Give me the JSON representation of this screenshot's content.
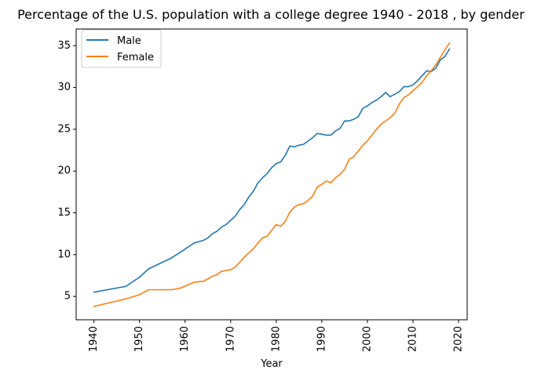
{
  "chart_data": {
    "type": "line",
    "title": "Percentage of the U.S. population with a college degree 1940 - 2018 , by gender",
    "xlabel": "Year",
    "ylabel": "",
    "xlim": [
      1936.1,
      2021.9
    ],
    "ylim": [
      2.2,
      37.0
    ],
    "xticks": [
      1940,
      1950,
      1960,
      1970,
      1980,
      1990,
      2000,
      2010,
      2020
    ],
    "yticks": [
      5,
      10,
      15,
      20,
      25,
      30,
      35
    ],
    "grid": false,
    "legend_position": "upper-left",
    "series": [
      {
        "name": "Male",
        "color": "#1f77b4",
        "x": [
          1940,
          1947,
          1950,
          1952,
          1957,
          1959,
          1962,
          1964,
          1965,
          1966,
          1967,
          1968,
          1969,
          1970,
          1971,
          1972,
          1973,
          1974,
          1975,
          1976,
          1977,
          1978,
          1979,
          1980,
          1981,
          1982,
          1983,
          1984,
          1985,
          1986,
          1987,
          1988,
          1989,
          1990,
          1991,
          1992,
          1993,
          1994,
          1995,
          1996,
          1997,
          1998,
          1999,
          2000,
          2001,
          2002,
          2003,
          2004,
          2005,
          2006,
          2007,
          2008,
          2009,
          2010,
          2011,
          2012,
          2013,
          2014,
          2015,
          2016,
          2017,
          2018
        ],
        "y": [
          5.5,
          6.2,
          7.3,
          8.3,
          9.6,
          10.3,
          11.4,
          11.7,
          12.0,
          12.5,
          12.8,
          13.3,
          13.6,
          14.1,
          14.6,
          15.4,
          16.0,
          16.9,
          17.6,
          18.6,
          19.2,
          19.7,
          20.4,
          20.9,
          21.1,
          21.9,
          23.0,
          22.9,
          23.1,
          23.2,
          23.6,
          24.0,
          24.5,
          24.4,
          24.3,
          24.3,
          24.8,
          25.1,
          26.0,
          26.0,
          26.2,
          26.5,
          27.5,
          27.8,
          28.2,
          28.5,
          28.9,
          29.4,
          28.9,
          29.2,
          29.5,
          30.1,
          30.1,
          30.3,
          30.8,
          31.4,
          32.0,
          31.9,
          32.3,
          33.3,
          33.7,
          34.6
        ]
      },
      {
        "name": "Female",
        "color": "#ff7f0e",
        "x": [
          1940,
          1947,
          1950,
          1952,
          1957,
          1959,
          1962,
          1964,
          1965,
          1966,
          1967,
          1968,
          1969,
          1970,
          1971,
          1972,
          1973,
          1974,
          1975,
          1976,
          1977,
          1978,
          1979,
          1980,
          1981,
          1982,
          1983,
          1984,
          1985,
          1986,
          1987,
          1988,
          1989,
          1990,
          1991,
          1992,
          1993,
          1994,
          1995,
          1996,
          1997,
          1998,
          1999,
          2000,
          2001,
          2002,
          2003,
          2004,
          2005,
          2006,
          2007,
          2008,
          2009,
          2010,
          2011,
          2012,
          2013,
          2014,
          2015,
          2016,
          2017,
          2018
        ],
        "y": [
          3.8,
          4.7,
          5.2,
          5.8,
          5.8,
          6.0,
          6.7,
          6.8,
          7.1,
          7.4,
          7.6,
          8.0,
          8.1,
          8.2,
          8.5,
          9.1,
          9.7,
          10.2,
          10.7,
          11.4,
          12.0,
          12.2,
          12.9,
          13.6,
          13.4,
          14.0,
          15.1,
          15.7,
          16.0,
          16.1,
          16.5,
          17.0,
          18.1,
          18.4,
          18.8,
          18.6,
          19.2,
          19.6,
          20.2,
          21.4,
          21.7,
          22.4,
          23.1,
          23.6,
          24.3,
          25.0,
          25.6,
          26.0,
          26.4,
          26.9,
          28.0,
          28.8,
          29.1,
          29.6,
          30.1,
          30.6,
          31.4,
          32.0,
          32.7,
          33.6,
          34.5,
          35.3
        ]
      }
    ]
  }
}
